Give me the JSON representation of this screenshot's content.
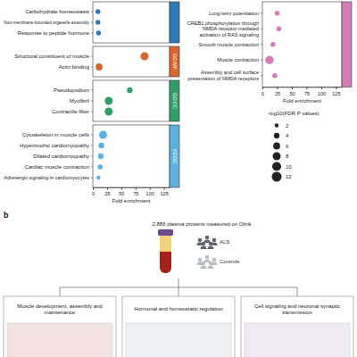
{
  "chart_data": [
    {
      "type": "dot",
      "orientation": "horizontal",
      "x_label": "Fold enrichment",
      "xlim": [
        0,
        135
      ],
      "xticks": [
        0,
        25,
        50,
        75,
        100,
        125
      ],
      "series": [
        {
          "color": "#2b7bba",
          "categories": [
            "Carbohydrate homeostasis",
            "Non-membrane-bounded organelle assembly",
            "Response to peptide hormone"
          ],
          "values": [
            9,
            9,
            10
          ],
          "sizes": [
            3,
            3,
            3
          ]
        },
        {
          "name": "GO:MF",
          "color": "#d9652b",
          "categories": [
            "Structural constituent of muscle",
            "Actin binding"
          ],
          "values": [
            91,
            11
          ],
          "sizes": [
            8,
            6
          ]
        },
        {
          "name": "GO:CC",
          "color": "#2e9f66",
          "categories": [
            "Pseudopodium",
            "Myofibril",
            "Contractile fiber"
          ],
          "values": [
            65,
            28,
            28
          ],
          "sizes": [
            4,
            8,
            8
          ]
        },
        {
          "name": "KEGG",
          "color": "#5bb1e0",
          "categories": [
            "Cytoskeleton in muscle cells",
            "Hypertrophic cardiomyopathy",
            "Dilated cardiomyopathy",
            "Cardiac muscle contraction",
            "Adrenergic signaling in cardiomyocytes"
          ],
          "values": [
            18,
            15,
            14,
            13,
            10
          ],
          "sizes": [
            8,
            4,
            4,
            3,
            2
          ]
        }
      ]
    },
    {
      "type": "dot",
      "orientation": "horizontal",
      "x_label": "Fold enrichment",
      "xlim": [
        0,
        135
      ],
      "xticks": [
        0,
        25,
        50,
        75,
        100,
        125
      ],
      "size_legend_title": "-log10(FDR P values)",
      "size_ticks": [
        2,
        4,
        6,
        8,
        10,
        12
      ],
      "series": [
        {
          "color": "#d67db9",
          "categories": [
            "Long-term potentiation",
            "CREB1 phosphorylation through NMDA receptor-mediated activation of RAS signaling",
            "Smooth muscle contraction",
            "Muscle contraction",
            "Assembly and cell surface presentation of NMDA receptors"
          ],
          "values": [
            25,
            28,
            18,
            12,
            21
          ],
          "sizes": [
            3,
            3,
            3,
            9,
            3
          ]
        }
      ]
    }
  ],
  "diagram": {
    "panel": "b",
    "sample_text": "2,886 plasma proteins measured on Olink",
    "groups": [
      "ALS",
      "Controls"
    ],
    "categories": [
      "Muscle development, assembly and maintenance",
      "Hormonal and homeostatic regulation",
      "Cell signaling and neuronal synaptic transmission"
    ]
  }
}
